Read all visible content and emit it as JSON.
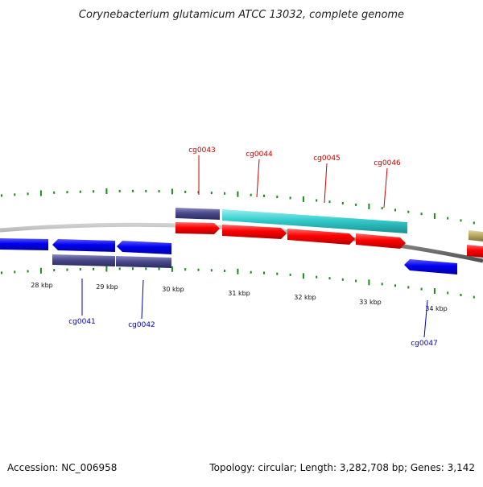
{
  "title": "Corynebacterium glutamicum ATCC 13032, complete genome",
  "footer": {
    "accession": "Accession: NC_006958",
    "summary": "Topology: circular; Length: 3,282,708 bp; Genes: 3,142"
  },
  "kbp_labels": [
    "28 kbp",
    "29 kbp",
    "30 kbp",
    "31 kbp",
    "32 kbp",
    "33 kbp",
    "34 kbp"
  ],
  "gene_labels": {
    "cg0041": "cg0041",
    "cg0042": "cg0042",
    "cg0043": "cg0043",
    "cg0044": "cg0044",
    "cg0045": "cg0045",
    "cg0046": "cg0046",
    "cg0047": "cg0047"
  },
  "colors": {
    "forward_gene": "#ff0000",
    "reverse_gene": "#0000e0",
    "cds_purple": "#4a4a8c",
    "cds_cyan": "#33cccc",
    "cds_olive": "#b8a860",
    "backbone": "#888888",
    "tick": "#1a8a1a",
    "label_forward": "#c80000",
    "label_reverse": "#0000b4"
  }
}
